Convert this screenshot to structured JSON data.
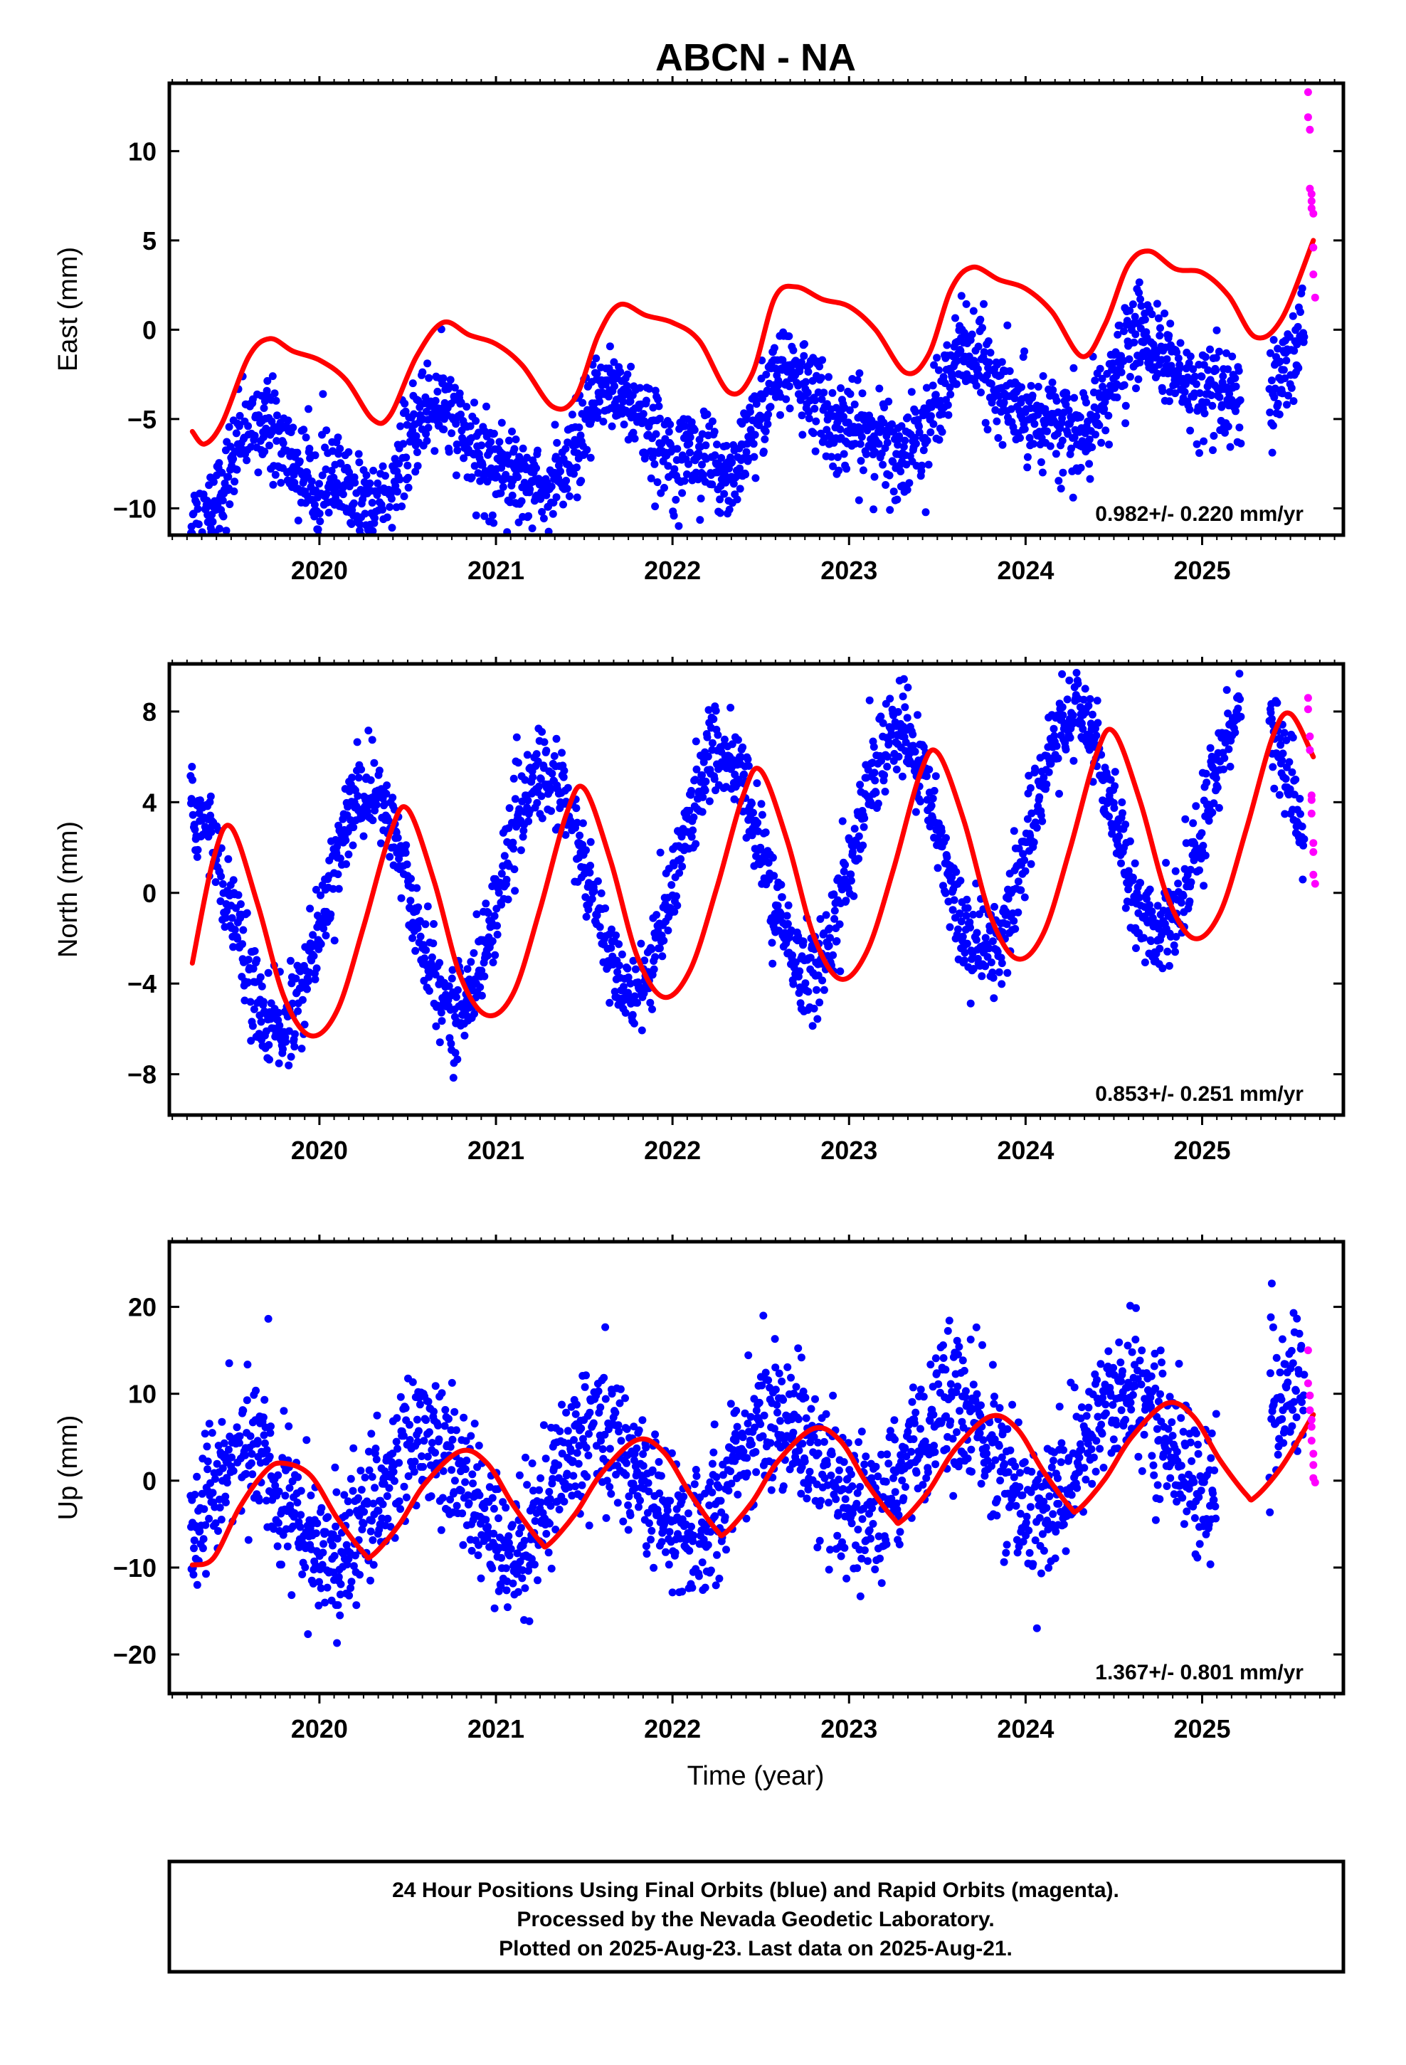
{
  "title": "ABCN - NA",
  "colors": {
    "final": "#0000ff",
    "rapid": "#ff00ff",
    "model": "#ff0000"
  },
  "footer": {
    "line1": "24 Hour Positions Using Final Orbits (blue) and Rapid Orbits (magenta).",
    "line2": "Processed by the Nevada Geodetic Laboratory.",
    "line3": "Plotted on 2025-Aug-23. Last data on 2025-Aug-21."
  },
  "xlabel": "Time (year)",
  "chart_data": [
    {
      "type": "scatter",
      "ylabel": "East (mm)",
      "rate_label": "0.982+/- 0.220 mm/yr",
      "xlim": [
        2019.15,
        2025.8
      ],
      "ylim": [
        -11.5,
        13.8
      ],
      "xticks": [
        2020,
        2021,
        2022,
        2023,
        2024,
        2025
      ],
      "yticks": [
        -10,
        -5,
        0,
        5,
        10
      ],
      "grid": false,
      "series": [
        {
          "role": "final",
          "description": "daily positions",
          "trend": 0.982,
          "anchor": [
            2019.3,
            -8.5
          ],
          "annual_amp": 2.3,
          "annual_phase": 0.7,
          "semiannual_amp": 0.9,
          "scatter": 1.3,
          "x_range": [
            2019.27,
            2025.58
          ],
          "gap": [
            2025.22,
            2025.38
          ]
        },
        {
          "role": "rapid",
          "description": "rapid positions",
          "x": [
            2025.6,
            2025.6,
            2025.61,
            2025.61,
            2025.62,
            2025.62,
            2025.62,
            2025.63,
            2025.63,
            2025.63,
            2025.64
          ],
          "y": [
            13.3,
            11.9,
            11.2,
            7.9,
            7.6,
            7.2,
            6.8,
            6.5,
            4.6,
            3.1,
            1.8
          ]
        },
        {
          "role": "model",
          "description": "model fit curve",
          "x": [
            2019.28,
            2019.35,
            2019.45,
            2019.6,
            2019.72,
            2019.85,
            2020.0,
            2020.15,
            2020.3,
            2020.4,
            2020.55,
            2020.7,
            2020.85,
            2021.0,
            2021.15,
            2021.32,
            2021.45,
            2021.58,
            2021.7,
            2021.85,
            2022.0,
            2022.15,
            2022.32,
            2022.45,
            2022.58,
            2022.7,
            2022.85,
            2023.0,
            2023.15,
            2023.32,
            2023.45,
            2023.58,
            2023.7,
            2023.85,
            2024.0,
            2024.15,
            2024.32,
            2024.45,
            2024.58,
            2024.7,
            2024.85,
            2025.0,
            2025.15,
            2025.3,
            2025.45,
            2025.63
          ],
          "y": [
            -5.7,
            -6.4,
            -5.2,
            -1.5,
            -0.5,
            -1.2,
            -1.7,
            -2.8,
            -5.0,
            -4.8,
            -1.5,
            0.4,
            -0.3,
            -0.8,
            -2.0,
            -4.3,
            -3.8,
            -0.3,
            1.4,
            0.8,
            0.4,
            -0.6,
            -3.5,
            -2.5,
            1.8,
            2.4,
            1.7,
            1.3,
            0.0,
            -2.4,
            -1.4,
            2.3,
            3.5,
            2.8,
            2.3,
            1.0,
            -1.5,
            0.3,
            3.6,
            4.4,
            3.4,
            3.2,
            1.9,
            -0.4,
            0.6,
            5.0
          ]
        }
      ]
    },
    {
      "type": "scatter",
      "ylabel": "North (mm)",
      "rate_label": "0.853+/- 0.251 mm/yr",
      "xlim": [
        2019.15,
        2025.8
      ],
      "ylim": [
        -9.8,
        10.1
      ],
      "xticks": [
        2020,
        2021,
        2022,
        2023,
        2024,
        2025
      ],
      "yticks": [
        -8,
        -4,
        0,
        4,
        8
      ],
      "grid": false,
      "series": [
        {
          "role": "final",
          "description": "daily positions",
          "trend": 0.853,
          "anchor": [
            2019.3,
            -1.4
          ],
          "annual_amp": 5.0,
          "annual_phase": 0.27,
          "semiannual_amp": 0.0,
          "scatter": 1.0,
          "x_range": [
            2019.27,
            2025.58
          ],
          "gap": [
            2025.22,
            2025.38
          ]
        },
        {
          "role": "rapid",
          "description": "rapid positions",
          "x": [
            2025.6,
            2025.6,
            2025.61,
            2025.61,
            2025.62,
            2025.62,
            2025.62,
            2025.63,
            2025.63,
            2025.63,
            2025.64
          ],
          "y": [
            8.6,
            8.1,
            6.9,
            6.3,
            4.3,
            4.1,
            3.5,
            2.2,
            1.8,
            0.8,
            0.4
          ]
        },
        {
          "role": "model",
          "description": "model fit curve",
          "x": [
            2019.28,
            2019.4,
            2019.5,
            2019.65,
            2019.8,
            2019.95,
            2020.1,
            2020.25,
            2020.4,
            2020.5,
            2020.65,
            2020.8,
            2020.95,
            2021.1,
            2021.25,
            2021.4,
            2021.5,
            2021.65,
            2021.8,
            2021.95,
            2022.1,
            2022.25,
            2022.4,
            2022.5,
            2022.65,
            2022.8,
            2022.95,
            2023.1,
            2023.25,
            2023.4,
            2023.5,
            2023.65,
            2023.8,
            2023.95,
            2024.1,
            2024.25,
            2024.4,
            2024.5,
            2024.65,
            2024.8,
            2024.95,
            2025.1,
            2025.25,
            2025.4,
            2025.5,
            2025.63
          ],
          "y": [
            -3.1,
            1.5,
            2.9,
            -0.5,
            -4.6,
            -6.3,
            -5.2,
            -1.5,
            2.6,
            3.7,
            0.5,
            -3.7,
            -5.4,
            -4.4,
            -0.7,
            3.5,
            4.6,
            1.4,
            -2.8,
            -4.6,
            -3.4,
            0.2,
            4.3,
            5.4,
            2.3,
            -1.9,
            -3.8,
            -2.6,
            1.0,
            5.2,
            6.2,
            3.2,
            -1.0,
            -2.9,
            -1.8,
            1.9,
            6.1,
            7.1,
            4.0,
            -0.1,
            -2.0,
            -0.9,
            2.8,
            6.9,
            7.9,
            6.0
          ]
        }
      ]
    },
    {
      "type": "scatter",
      "ylabel": "Up (mm)",
      "rate_label": "1.367+/- 0.801 mm/yr",
      "xlim": [
        2019.15,
        2025.8
      ],
      "ylim": [
        -24.5,
        27.5
      ],
      "xticks": [
        2020,
        2021,
        2022,
        2023,
        2024,
        2025
      ],
      "yticks": [
        -20,
        -10,
        0,
        10,
        20
      ],
      "grid": false,
      "series": [
        {
          "role": "final",
          "description": "daily positions",
          "trend": 1.367,
          "anchor": [
            2019.3,
            -3.5
          ],
          "annual_amp": 6.5,
          "annual_phase": 0.58,
          "semiannual_amp": 0.0,
          "scatter": 4.0,
          "x_range": [
            2019.27,
            2025.58
          ],
          "gap": [
            2025.08,
            2025.38
          ]
        },
        {
          "role": "rapid",
          "description": "rapid positions",
          "x": [
            2025.6,
            2025.6,
            2025.61,
            2025.61,
            2025.62,
            2025.62,
            2025.62,
            2025.63,
            2025.63,
            2025.63,
            2025.64
          ],
          "y": [
            15.0,
            11.2,
            9.8,
            8.1,
            7.0,
            6.2,
            4.6,
            3.1,
            1.8,
            0.3,
            -0.2
          ]
        },
        {
          "role": "model",
          "description": "model fit curve",
          "x": [
            2019.28,
            2019.4,
            2019.55,
            2019.7,
            2019.8,
            2019.95,
            2020.1,
            2020.25,
            2020.3,
            2020.45,
            2020.6,
            2020.8,
            2020.95,
            2021.1,
            2021.25,
            2021.3,
            2021.45,
            2021.6,
            2021.8,
            2021.95,
            2022.1,
            2022.25,
            2022.3,
            2022.45,
            2022.6,
            2022.8,
            2022.95,
            2023.1,
            2023.25,
            2023.3,
            2023.45,
            2023.6,
            2023.8,
            2023.95,
            2024.1,
            2024.25,
            2024.3,
            2024.45,
            2024.6,
            2024.8,
            2024.95,
            2025.1,
            2025.25,
            2025.3,
            2025.45,
            2025.63
          ],
          "y": [
            -9.7,
            -8.9,
            -3.0,
            1.2,
            2.0,
            0.6,
            -4.3,
            -8.3,
            -8.6,
            -5.1,
            -0.3,
            3.4,
            2.0,
            -2.9,
            -7.0,
            -7.3,
            -3.8,
            0.9,
            4.7,
            3.3,
            -1.5,
            -5.7,
            -6.0,
            -2.5,
            2.3,
            6.0,
            4.6,
            -0.3,
            -4.3,
            -4.6,
            -1.2,
            3.6,
            7.4,
            6.0,
            1.1,
            -3.0,
            -3.3,
            0.2,
            5.0,
            8.9,
            7.4,
            2.4,
            -1.6,
            -1.9,
            1.6,
            7.6
          ]
        }
      ]
    }
  ]
}
